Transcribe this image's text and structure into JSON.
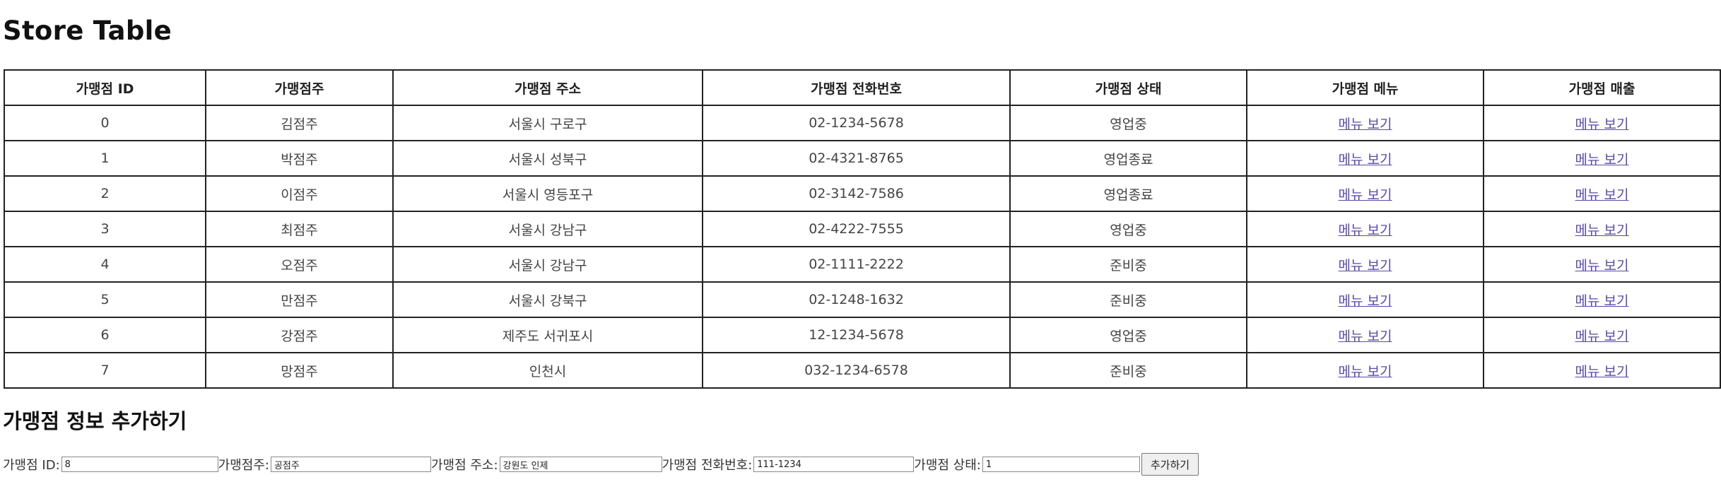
{
  "page_title": "Store Table",
  "table": {
    "headers": [
      "가맹점 ID",
      "가맹점주",
      "가맹점 주소",
      "가맹점 전화번호",
      "가맹점 상태",
      "가맹점 메뉴",
      "가맹점 매출"
    ],
    "rows": [
      [
        "0",
        "김점주",
        "서울시 구로구",
        "02-1234-5678",
        "영업중",
        "메뉴 보기",
        "메뉴 보기"
      ],
      [
        "1",
        "박점주",
        "서울시 성북구",
        "02-4321-8765",
        "영업종료",
        "메뉴 보기",
        "메뉴 보기"
      ],
      [
        "2",
        "이점주",
        "서울시 영등포구",
        "02-3142-7586",
        "영업종료",
        "메뉴 보기",
        "메뉴 보기"
      ],
      [
        "3",
        "최점주",
        "서울시 강남구",
        "02-4222-7555",
        "영업중",
        "메뉴 보기",
        "메뉴 보기"
      ],
      [
        "4",
        "오점주",
        "서울시 강남구",
        "02-1111-2222",
        "준비중",
        "메뉴 보기",
        "메뉴 보기"
      ],
      [
        "5",
        "만점주",
        "서울시 강북구",
        "02-1248-1632",
        "준비중",
        "메뉴 보기",
        "메뉴 보기"
      ],
      [
        "6",
        "강점주",
        "제주도 서귀포시",
        "12-1234-5678",
        "영업중",
        "메뉴 보기",
        "메뉴 보기"
      ],
      [
        "7",
        "망점주",
        "인천시",
        "032-1234-6578",
        "준비중",
        "메뉴 보기",
        "메뉴 보기"
      ]
    ]
  },
  "form": {
    "title": "가맹점 정보 추가하기",
    "id_label": "가맹점 ID:",
    "id_value": "8",
    "owner_label": "가맹점주:",
    "owner_value": "공점주",
    "address_label": "가맹점 주소:",
    "address_value": "강원도 인제",
    "phone_label": "가맹점 전화번호:",
    "phone_value": "111-1234",
    "status_label": "가맹점 상태:",
    "status_value": "1",
    "submit_label": "추가하기"
  }
}
